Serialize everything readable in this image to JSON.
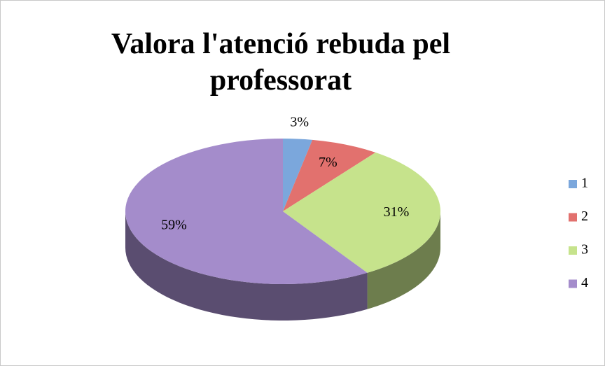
{
  "chart_data": {
    "type": "pie",
    "title": "Valora l'atenció rebuda pel professorat",
    "categories": [
      "1",
      "2",
      "3",
      "4"
    ],
    "values": [
      3,
      7,
      31,
      59
    ],
    "value_labels": [
      "3%",
      "7%",
      "31%",
      "59%"
    ],
    "colors": [
      "#7ba7dc",
      "#e2716e",
      "#c6e38c",
      "#a48ccb"
    ],
    "legend": "right"
  }
}
